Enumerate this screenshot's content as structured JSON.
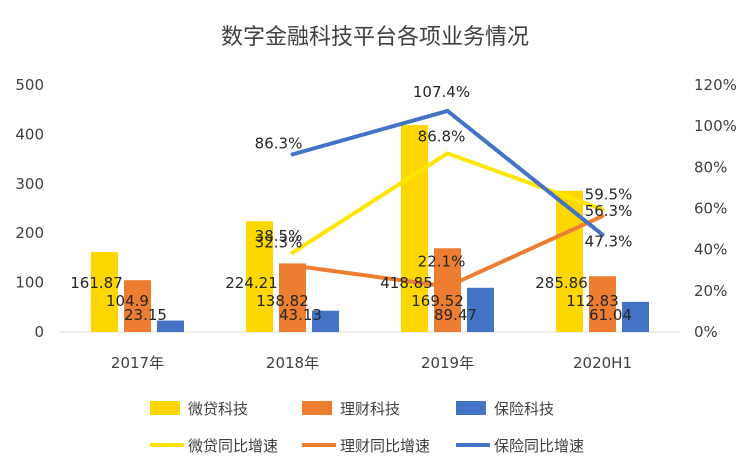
{
  "chart_data": {
    "type": "bar",
    "title": "数字金融科技平台各项业务情况",
    "categories": [
      "2017年",
      "2018年",
      "2019年",
      "2020H1"
    ],
    "y_left": {
      "ticks": [
        "0",
        "100",
        "200",
        "300",
        "400",
        "500"
      ],
      "range": [
        0,
        500
      ]
    },
    "y_right": {
      "ticks": [
        "0%",
        "20%",
        "40%",
        "60%",
        "80%",
        "100%",
        "120%"
      ],
      "range": [
        0,
        120
      ]
    },
    "bar_series": [
      {
        "name": "微贷科技",
        "color": "#FFD700",
        "values": [
          161.87,
          224.21,
          418.85,
          285.86
        ],
        "labels": [
          "161.87",
          "224.21",
          "418.85",
          "285.86"
        ]
      },
      {
        "name": "理财科技",
        "color": "#ED7D31",
        "values": [
          104.9,
          138.82,
          169.52,
          112.83
        ],
        "labels": [
          "104.9",
          "138.82",
          "169.52",
          "112.83"
        ]
      },
      {
        "name": "保险科技",
        "color": "#4472C4",
        "values": [
          23.15,
          43.13,
          89.47,
          61.04
        ],
        "labels": [
          "23.15",
          "43.13",
          "89.47",
          "61.04"
        ]
      }
    ],
    "line_series": [
      {
        "name": "微贷同比增速",
        "color": "#FFE600",
        "values": [
          null,
          38.5,
          86.8,
          59.5
        ],
        "labels": [
          "",
          "38.5%",
          "86.8%",
          "59.5%"
        ]
      },
      {
        "name": "理财同比增速",
        "color": "#ED7D31",
        "values": [
          null,
          32.3,
          22.1,
          56.3
        ],
        "labels": [
          "",
          "32.3%",
          "22.1%",
          "56.3%"
        ]
      },
      {
        "name": "保险同比增速",
        "color": "#4472C4",
        "values": [
          null,
          86.3,
          107.4,
          47.3
        ],
        "labels": [
          "",
          "86.3%",
          "107.4%",
          "47.3%"
        ]
      }
    ],
    "legend_position": "bottom",
    "grid": false
  }
}
